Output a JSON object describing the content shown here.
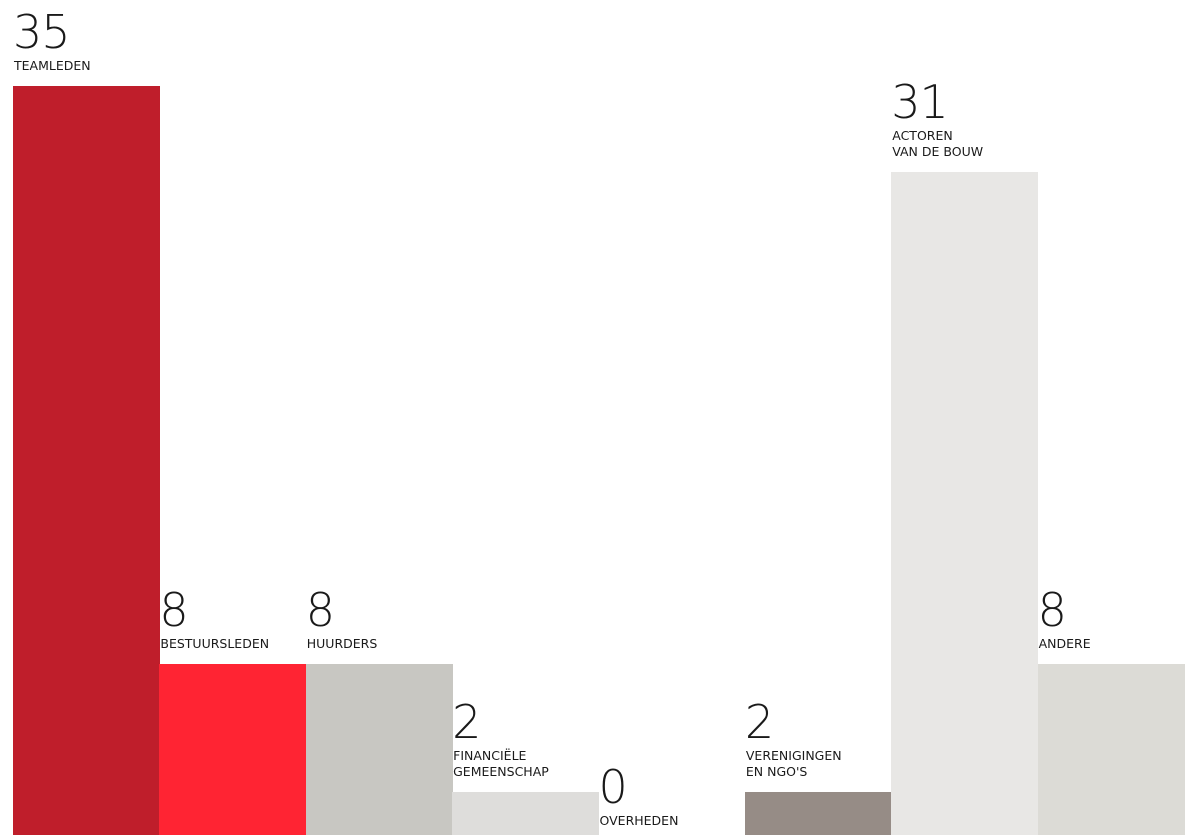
{
  "chart_data": {
    "type": "bar",
    "categories": [
      "TEAMLEDEN",
      "BESTUURSLEDEN",
      "HUURDERS",
      "FINANCIËLE\nGEMEENSCHAP",
      "OVERHEDEN",
      "VERENIGINGEN\nEN NGO'S",
      "ACTOREN\nVAN DE BOUW",
      "ANDERE"
    ],
    "values": [
      35,
      8,
      8,
      2,
      0,
      2,
      31,
      8
    ],
    "colors": [
      "#bf1e2b",
      "#ff2433",
      "#c8c7c2",
      "#dedddb",
      "#ffffff",
      "#968c86",
      "#e8e7e5",
      "#dcdbd6"
    ],
    "title": "",
    "xlabel": "",
    "ylabel": "",
    "ylim": [
      0,
      35
    ],
    "grid": false,
    "legend": "none"
  }
}
